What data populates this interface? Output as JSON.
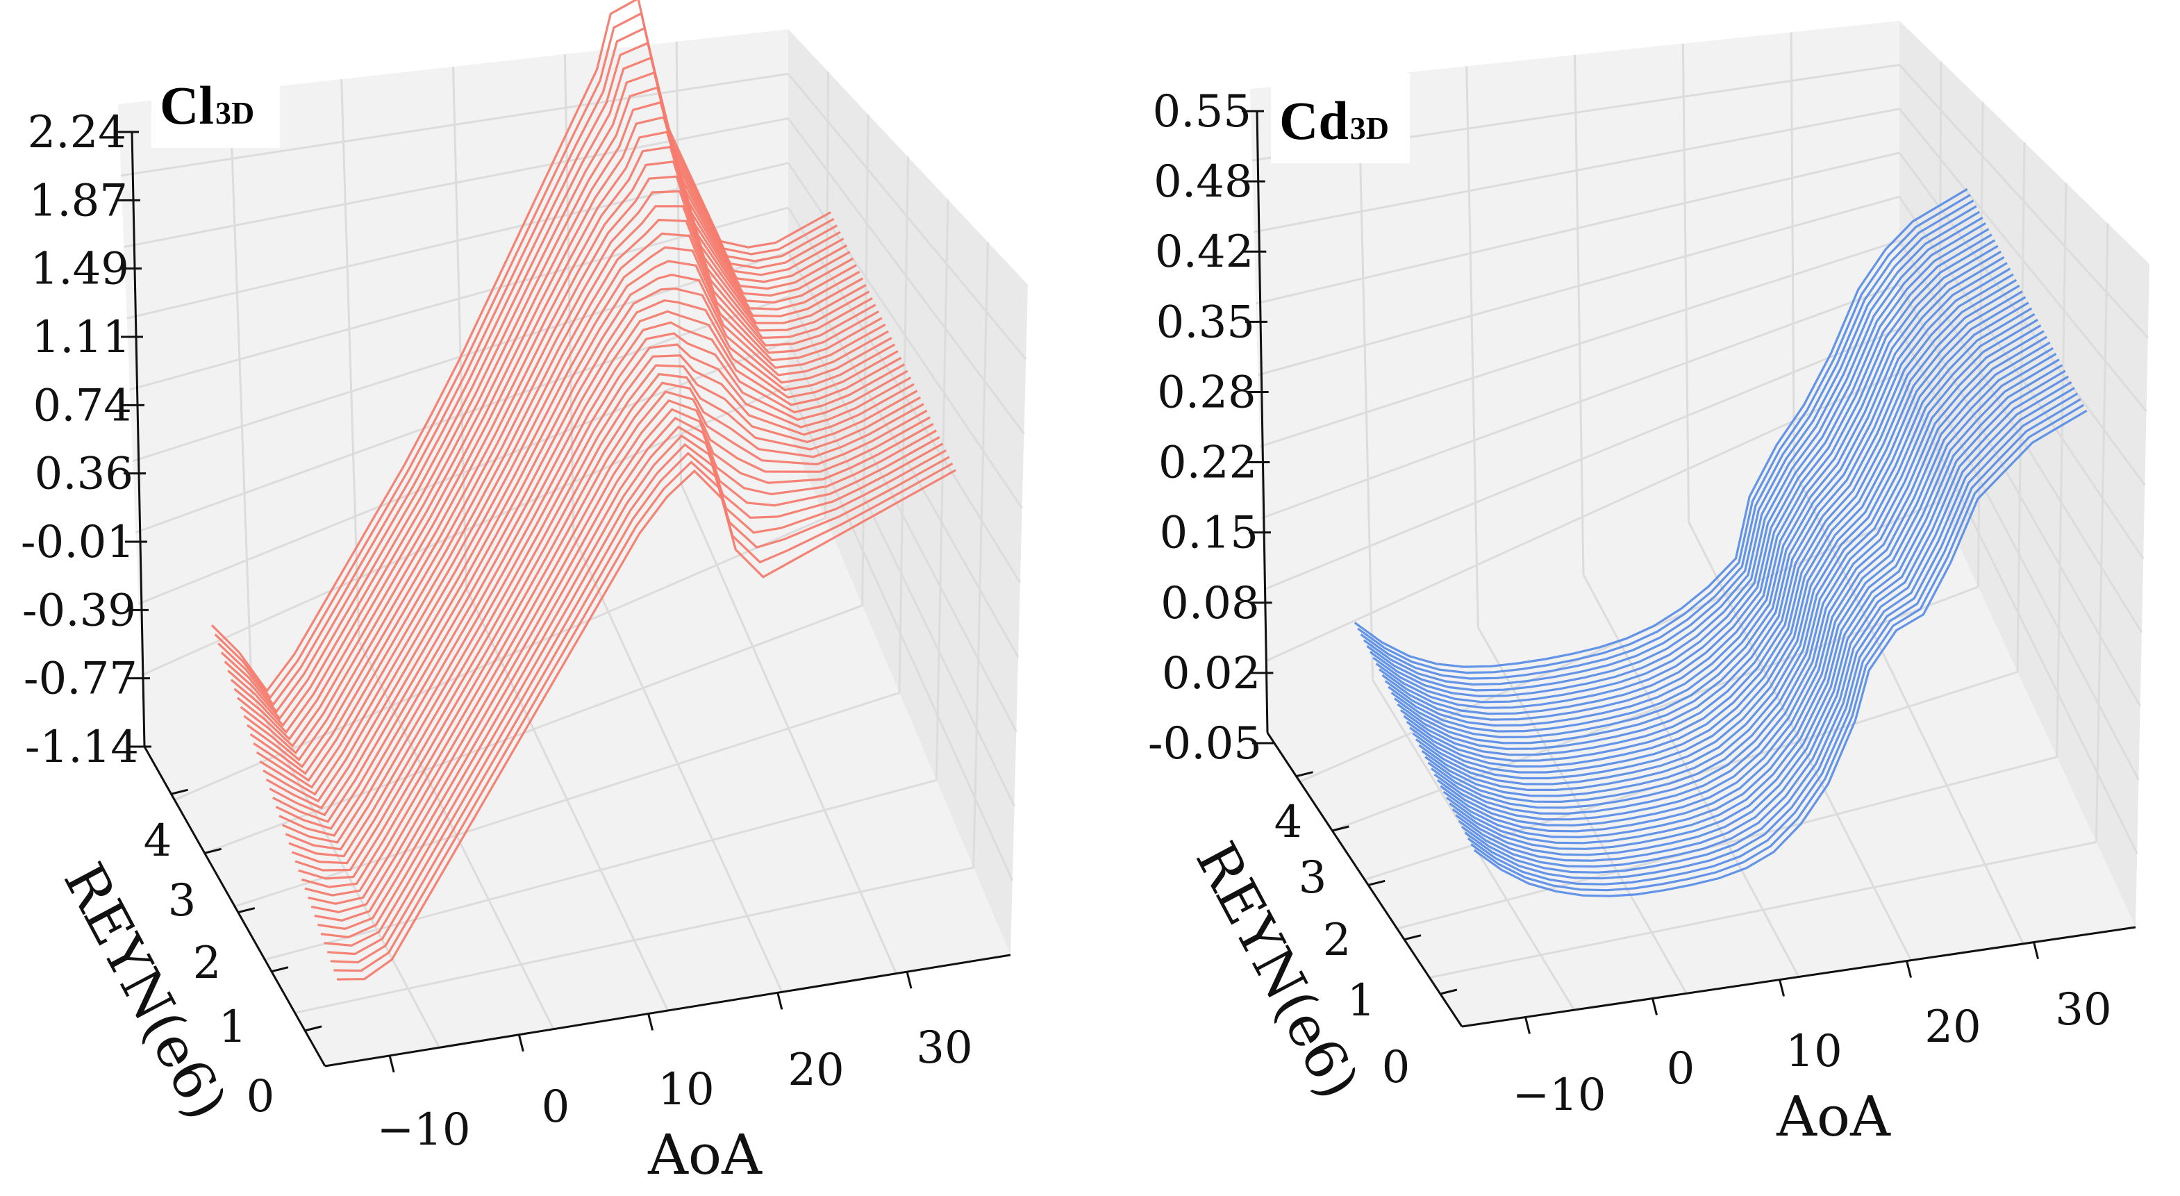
{
  "chart_data": [
    {
      "type": "line",
      "plot_kind": "3d-wireframe",
      "title": "Cl",
      "title_sub": "3D",
      "xlabel": "AoA",
      "ylabel": "REYN(e6)",
      "zlabel": "",
      "color": "#f47c6e",
      "xlim": [
        -15,
        35
      ],
      "ylim": [
        0,
        5
      ],
      "zlim": [
        -1.14,
        2.24
      ],
      "x_ticks": [
        "−10",
        "0",
        "10",
        "20",
        "30"
      ],
      "y_ticks": [
        "0",
        "1",
        "2",
        "3",
        "4"
      ],
      "z_ticks": [
        "2.24",
        "1.87",
        "1.49",
        "1.11",
        "0.74",
        "0.36",
        "-0.01",
        "-0.39",
        "-0.77",
        "-1.14"
      ],
      "series_count": 40,
      "series_reyn_range": [
        0.5,
        4.5
      ],
      "aoa": [
        -13,
        -11,
        -9,
        -7,
        -5,
        -3,
        -1,
        1,
        3,
        5,
        7,
        9,
        11,
        13,
        15,
        16,
        18,
        20,
        22,
        24,
        26,
        28,
        30,
        32
      ],
      "value_low_reyn": [
        -0.9,
        -0.92,
        -0.85,
        -0.65,
        -0.45,
        -0.25,
        -0.05,
        0.15,
        0.35,
        0.55,
        0.75,
        0.95,
        1.1,
        1.2,
        1.05,
        0.8,
        0.65,
        0.7,
        0.75,
        0.8,
        0.85,
        0.9,
        0.95,
        1.0
      ],
      "value_high_reyn": [
        -0.4,
        -0.55,
        -0.75,
        -0.6,
        -0.4,
        -0.2,
        0.0,
        0.2,
        0.42,
        0.65,
        0.9,
        1.15,
        1.4,
        1.65,
        1.9,
        2.15,
        2.2,
        1.6,
        1.3,
        1.0,
        0.95,
        0.95,
        1.0,
        1.05
      ]
    },
    {
      "type": "line",
      "plot_kind": "3d-wireframe",
      "title": "Cd",
      "title_sub": "3D",
      "xlabel": "AoA",
      "ylabel": "REYN(e6)",
      "zlabel": "",
      "color": "#5b8ee6",
      "xlim": [
        -15,
        35
      ],
      "ylim": [
        0,
        5
      ],
      "zlim": [
        -0.05,
        0.55
      ],
      "x_ticks": [
        "−10",
        "0",
        "10",
        "20",
        "30"
      ],
      "y_ticks": [
        "0",
        "1",
        "2",
        "3",
        "4"
      ],
      "z_ticks": [
        "0.55",
        "0.48",
        "0.42",
        "0.35",
        "0.28",
        "0.22",
        "0.15",
        "0.08",
        "0.02",
        "-0.05"
      ],
      "series_count": 40,
      "series_reyn_range": [
        0.5,
        4.5
      ],
      "aoa": [
        -13,
        -11,
        -9,
        -7,
        -5,
        -3,
        -1,
        1,
        3,
        5,
        7,
        9,
        11,
        13,
        15,
        16,
        18,
        20,
        22,
        24,
        26,
        28,
        30,
        32
      ],
      "value_low_reyn": [
        0.07,
        0.05,
        0.035,
        0.025,
        0.018,
        0.014,
        0.012,
        0.012,
        0.013,
        0.015,
        0.02,
        0.03,
        0.05,
        0.08,
        0.13,
        0.17,
        0.2,
        0.21,
        0.25,
        0.3,
        0.32,
        0.34,
        0.35,
        0.36
      ],
      "value_high_reyn": [
        0.065,
        0.045,
        0.03,
        0.02,
        0.014,
        0.011,
        0.01,
        0.01,
        0.011,
        0.013,
        0.017,
        0.024,
        0.035,
        0.05,
        0.07,
        0.12,
        0.16,
        0.19,
        0.23,
        0.28,
        0.31,
        0.33,
        0.34,
        0.35
      ]
    }
  ]
}
